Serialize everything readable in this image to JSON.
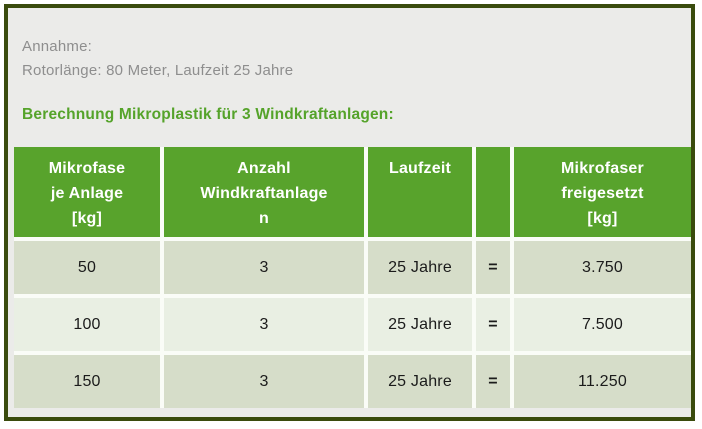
{
  "colors": {
    "frame_border": "#3a4b0d",
    "panel_background": "#ebebe9",
    "accent_green": "#58a32c",
    "title_green": "#55a32a",
    "row_odd": "#d6ddc9",
    "row_even": "#e9efe3",
    "muted_text": "#8e8e8e"
  },
  "assumption": {
    "label": "Annahme:",
    "detail": "Rotorlänge: 80 Meter, Laufzeit 25 Jahre"
  },
  "title": "Berechnung Mikroplastik für 3 Windkraftanlagen:",
  "table": {
    "headers": [
      "Mikrofase\nje Anlage\n[kg]",
      "Anzahl\nWindkraftanlage\nn",
      "Laufzeit",
      "",
      "Mikrofaser\nfreigesetzt\n[kg]"
    ],
    "rows": [
      [
        "50",
        "3",
        "25 Jahre",
        "=",
        "3.750"
      ],
      [
        "100",
        "3",
        "25 Jahre",
        "=",
        "7.500"
      ],
      [
        "150",
        "3",
        "25 Jahre",
        "=",
        "11.250"
      ]
    ]
  },
  "chart_data": {
    "type": "table",
    "title": "Berechnung Mikroplastik für 3 Windkraftanlagen",
    "columns": [
      "Mikrofase je Anlage [kg]",
      "Anzahl Windkraftanlagen",
      "Laufzeit",
      "",
      "Mikrofaser freigesetzt [kg]"
    ],
    "rows": [
      [
        50,
        3,
        "25 Jahre",
        "=",
        3750
      ],
      [
        100,
        3,
        "25 Jahre",
        "=",
        7500
      ],
      [
        150,
        3,
        "25 Jahre",
        "=",
        11250
      ]
    ]
  }
}
